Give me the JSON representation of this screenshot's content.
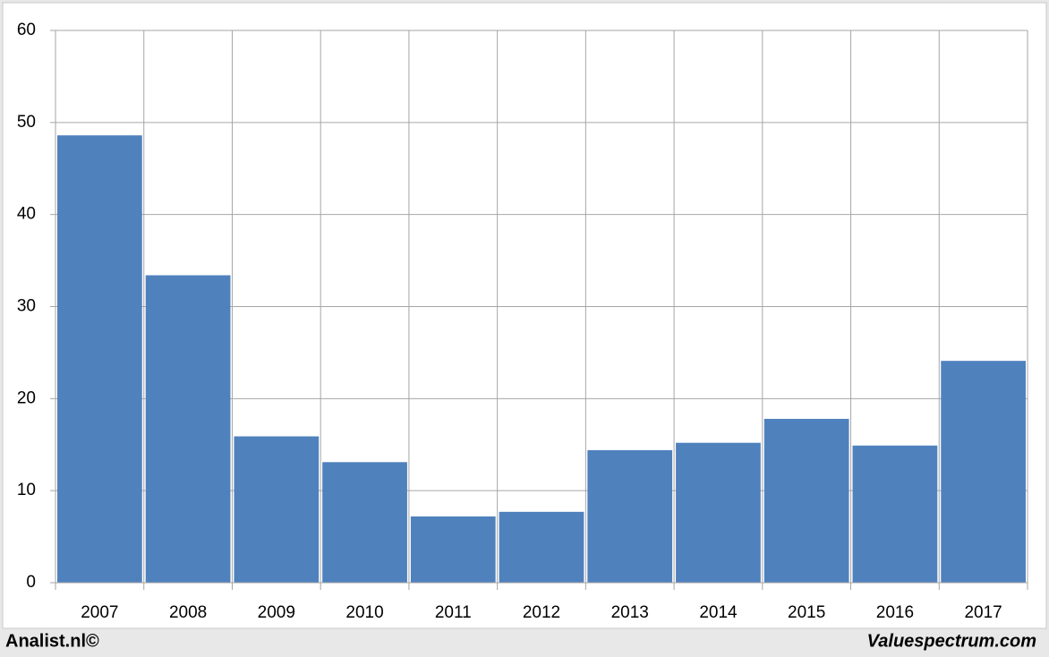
{
  "chart_data": {
    "type": "bar",
    "categories": [
      "2007",
      "2008",
      "2009",
      "2010",
      "2011",
      "2012",
      "2013",
      "2014",
      "2015",
      "2016",
      "2017"
    ],
    "values": [
      48.6,
      33.4,
      15.9,
      13.1,
      7.2,
      7.7,
      14.4,
      15.2,
      17.8,
      14.9,
      24.1
    ],
    "color": "#4f81bd",
    "ylim": [
      0,
      60
    ],
    "yticks": [
      0,
      10,
      20,
      30,
      40,
      50,
      60
    ],
    "grid": true,
    "footer_left": "Analist.nl©",
    "footer_right": "Valuespectrum.com"
  }
}
